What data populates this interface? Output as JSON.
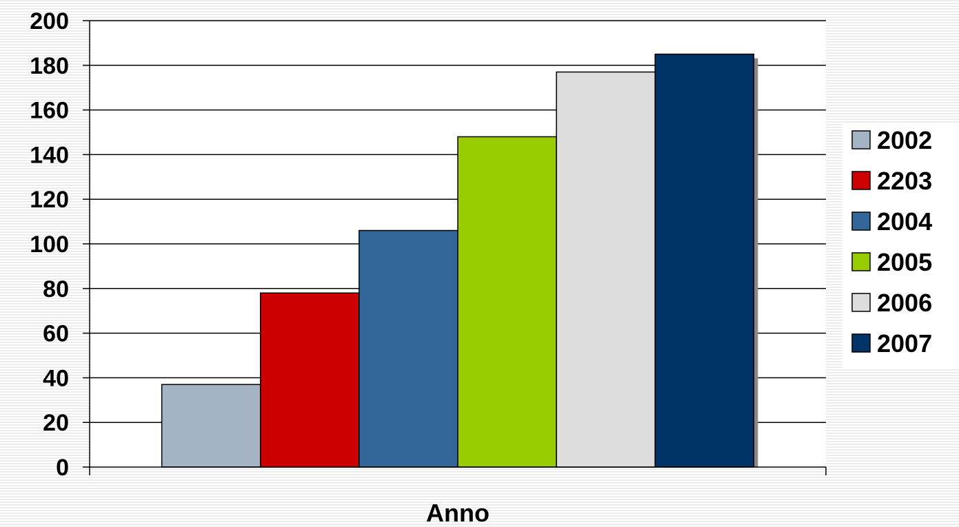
{
  "chart_data": {
    "type": "bar",
    "title": "",
    "xlabel": "Anno",
    "ylabel": "",
    "ylim": [
      0,
      200
    ],
    "yticks": [
      0,
      20,
      40,
      60,
      80,
      100,
      120,
      140,
      160,
      180,
      200
    ],
    "grid": true,
    "legend_position": "right",
    "series": [
      {
        "name": "2002",
        "values": [
          37
        ],
        "color": "#a5b4c4"
      },
      {
        "name": "2203",
        "values": [
          78
        ],
        "color": "#cc0000"
      },
      {
        "name": "2004",
        "values": [
          106
        ],
        "color": "#336699"
      },
      {
        "name": "2005",
        "values": [
          148
        ],
        "color": "#99cc00"
      },
      {
        "name": "2006",
        "values": [
          177
        ],
        "color": "#dddddd"
      },
      {
        "name": "2007",
        "values": [
          185
        ],
        "color": "#003366"
      }
    ]
  }
}
